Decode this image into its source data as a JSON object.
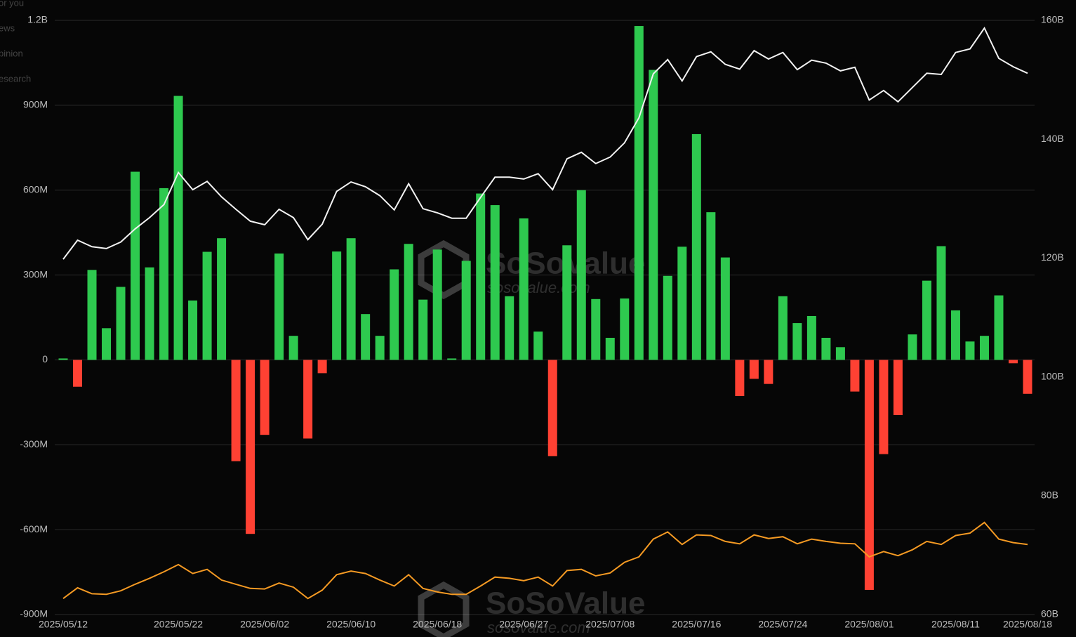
{
  "chart_data": {
    "type": "bar_line",
    "categories": [
      "2025/05/12",
      null,
      null,
      null,
      null,
      null,
      null,
      null,
      "2025/05/22",
      null,
      null,
      null,
      null,
      null,
      "2025/06/02",
      null,
      null,
      null,
      null,
      null,
      "2025/06/10",
      null,
      null,
      null,
      null,
      null,
      "2025/06/18",
      null,
      null,
      null,
      null,
      null,
      "2025/06/27",
      null,
      null,
      null,
      null,
      null,
      "2025/07/08",
      null,
      null,
      null,
      null,
      null,
      "2025/07/16",
      null,
      null,
      null,
      null,
      null,
      "2025/07/24",
      null,
      null,
      null,
      null,
      null,
      "2025/08/01",
      null,
      null,
      null,
      null,
      null,
      "2025/08/11",
      null,
      null,
      null,
      null,
      "2025/08/18"
    ],
    "series": [
      {
        "positive_color": "#2ec94f",
        "negative_color": "#ff4133",
        "values": [
          5000000.0,
          -95000000.0,
          318000000.0,
          112000000.0,
          258000000.0,
          665000000.0,
          327000000.0,
          607000000.0,
          933000000.0,
          210000000.0,
          382000000.0,
          430000000.0,
          -358000000.0,
          -615000000.0,
          -265000000.0,
          376000000.0,
          85000000.0,
          -278000000.0,
          -47000000.0,
          383000000.0,
          430000000.0,
          162000000.0,
          85000000.0,
          320000000.0,
          410000000.0,
          213000000.0,
          390000000.0,
          5000000.0,
          350000000.0,
          588000000.0,
          547000000.0,
          225000000.0,
          500000000.0,
          100000000.0,
          -340000000.0,
          405000000.0,
          600000000.0,
          215000000.0,
          78000000.0,
          217000000.0,
          1180000000.0,
          1025000000.0,
          297000000.0,
          400000000.0,
          798000000.0,
          522000000.0,
          362000000.0,
          -128000000.0,
          -67000000.0,
          -85000000.0,
          225000000.0,
          130000000.0,
          155000000.0,
          78000000.0,
          45000000.0,
          -112000000.0,
          -813000000.0,
          -333000000.0,
          -195000000.0,
          90000000.0,
          280000000.0,
          402000000.0,
          175000000.0,
          65000000.0,
          85000000.0,
          228000000.0,
          -12000000.0,
          -120000000.0
        ]
      },
      {
        "type": "line",
        "axis": "y2",
        "color": "#f2f2f2",
        "values": [
          119800000000.0,
          123000000000.0,
          121900000000.0,
          121600000000.0,
          122700000000.0,
          124900000000.0,
          126800000000.0,
          129000000000.0,
          134400000000.0,
          131500000000.0,
          132900000000.0,
          130300000000.0,
          128200000000.0,
          126200000000.0,
          125600000000.0,
          128200000000.0,
          126800000000.0,
          123100000000.0,
          125700000000.0,
          131200000000.0,
          132800000000.0,
          132000000000.0,
          130500000000.0,
          128100000000.0,
          132500000000.0,
          128300000000.0,
          127600000000.0,
          126700000000.0,
          126700000000.0,
          130200000000.0,
          133600000000.0,
          133600000000.0,
          133300000000.0,
          134200000000.0,
          131500000000.0,
          136700000000.0,
          137800000000.0,
          135900000000.0,
          137000000000.0,
          139400000000.0,
          143600000000.0,
          151000000000.0,
          153400000000.0,
          149800000000.0,
          153900000000.0,
          154700000000.0,
          152600000000.0,
          151800000000.0,
          154900000000.0,
          153500000000.0,
          154600000000.0,
          151700000000.0,
          153300000000.0,
          152800000000.0,
          151500000000.0,
          152100000000.0,
          146600000000.0,
          148200000000.0,
          146300000000.0,
          148700000000.0,
          151100000000.0,
          150900000000.0,
          154600000000.0,
          155200000000.0,
          158700000000.0,
          153600000000.0,
          152200000000.0,
          151100000000.0
        ]
      },
      {
        "type": "line",
        "axis": "y2",
        "color": "#f59a23",
        "values": [
          62700000000.0,
          64500000000.0,
          63500000000.0,
          63400000000.0,
          64000000000.0,
          65100000000.0,
          66100000000.0,
          67200000000.0,
          68400000000.0,
          66900000000.0,
          67600000000.0,
          65800000000.0,
          65100000000.0,
          64400000000.0,
          64300000000.0,
          65300000000.0,
          64600000000.0,
          62700000000.0,
          64100000000.0,
          66700000000.0,
          67300000000.0,
          66900000000.0,
          65800000000.0,
          64800000000.0,
          66700000000.0,
          64400000000.0,
          63800000000.0,
          63400000000.0,
          63400000000.0,
          64800000000.0,
          66300000000.0,
          66100000000.0,
          65700000000.0,
          66300000000.0,
          64800000000.0,
          67400000000.0,
          67600000000.0,
          66500000000.0,
          67000000000.0,
          68800000000.0,
          69700000000.0,
          72700000000.0,
          73900000000.0,
          71800000000.0,
          73400000000.0,
          73300000000.0,
          72300000000.0,
          71900000000.0,
          73400000000.0,
          72800000000.0,
          73100000000.0,
          71900000000.0,
          72700000000.0,
          72300000000.0,
          72000000000.0,
          71900000000.0,
          69700000000.0,
          70600000000.0,
          69900000000.0,
          70900000000.0,
          72300000000.0,
          71800000000.0,
          73300000000.0,
          73700000000.0,
          75500000000.0,
          72700000000.0,
          72100000000.0,
          71800000000.0
        ]
      }
    ],
    "ylim": [
      -900000000.0,
      1200000000.0
    ],
    "yticks": [
      {
        "value": -900000000.0,
        "label": "-900M"
      },
      {
        "value": -600000000.0,
        "label": "-600M"
      },
      {
        "value": -300000000.0,
        "label": "-300M"
      },
      0,
      {
        "value": 300000000.0,
        "label": "300M"
      },
      {
        "value": 600000000.0,
        "label": "600M"
      },
      {
        "value": 900000000.0,
        "label": "900M"
      },
      {
        "value": 1200000000.0,
        "label": "1.2B"
      }
    ],
    "y2lim": [
      60000000000.0,
      160000000000.0
    ],
    "y2ticks": [
      {
        "value": 60000000000.0,
        "label": "60B"
      },
      {
        "value": 80000000000.0,
        "label": "80B"
      },
      {
        "value": 100000000000.0,
        "label": "100B"
      },
      {
        "value": 120000000000.0,
        "label": "120B"
      },
      {
        "value": 140000000000.0,
        "label": "140B"
      },
      {
        "value": 160000000000.0,
        "label": "160B"
      }
    ],
    "grid": true,
    "watermarks": [
      {
        "brand": "SoSoValue",
        "site": "sosovalue.com"
      },
      {
        "brand": "SoSoValue",
        "site": "sosovalue.com"
      }
    ]
  },
  "sidebar_fragments": [
    "or you",
    "ews",
    "pinion",
    "esearch"
  ]
}
